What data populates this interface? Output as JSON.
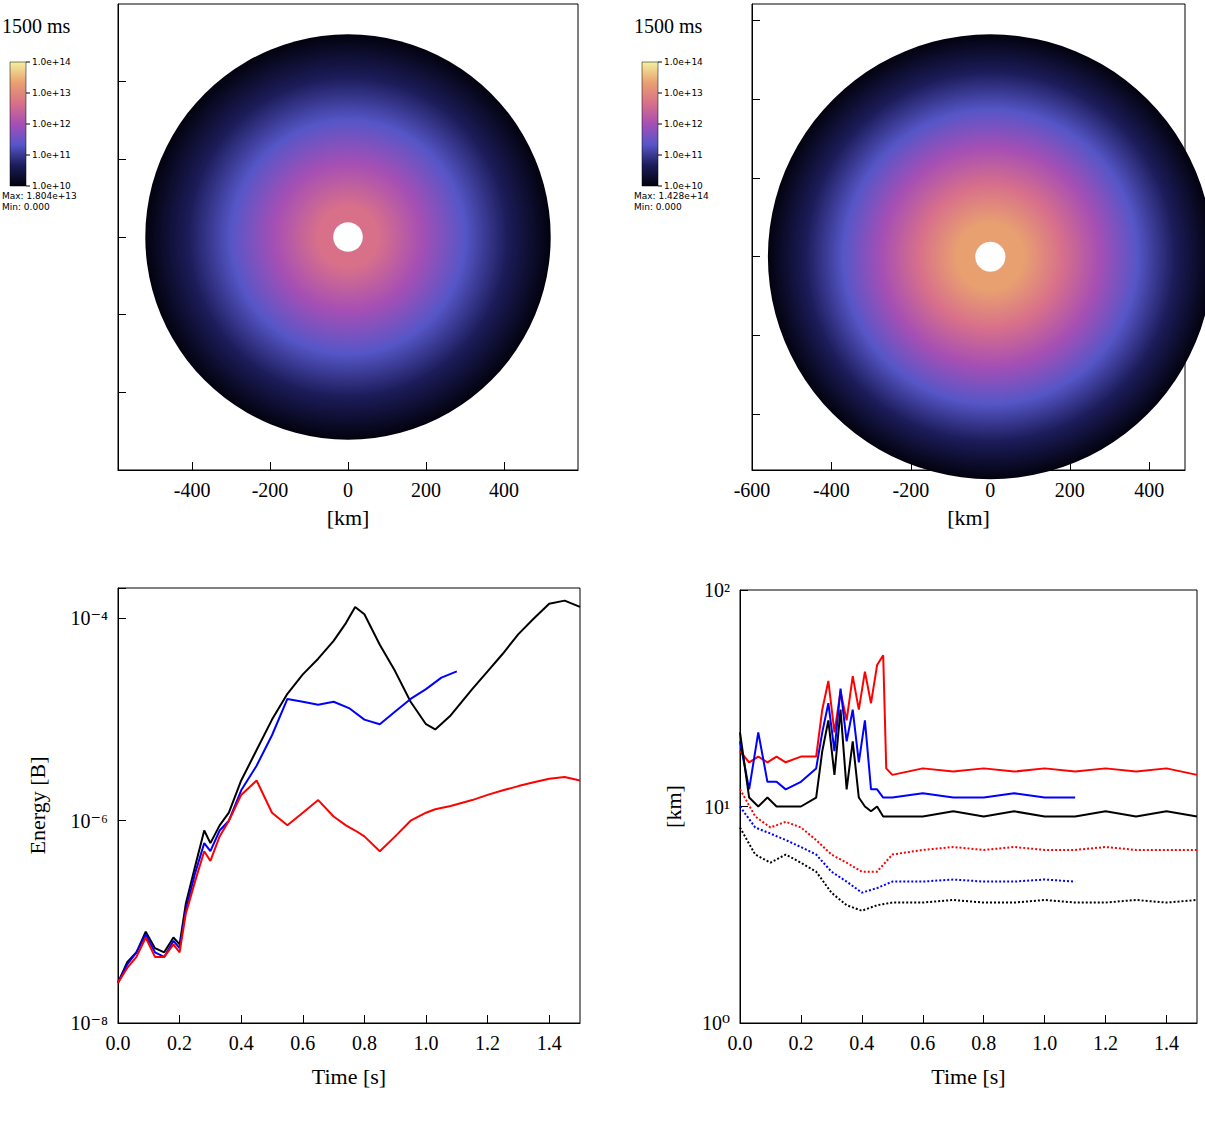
{
  "chart_data": [
    {
      "type": "image",
      "title": "1500 ms",
      "xlabel": "[km]",
      "xlim": [
        -590,
        590
      ],
      "xticks": [
        -400,
        -200,
        0,
        200,
        400
      ],
      "ylim": [
        -600,
        600
      ],
      "yticks": [
        -400,
        -200,
        0,
        200,
        400
      ],
      "tick_labels": "x",
      "colorbar": {
        "range": [
          10000000000.0,
          100000000000000.0
        ],
        "log": true,
        "ticks": [
          {
            "value": 100000000000000.0,
            "label": "1.0e+14"
          },
          {
            "value": 10000000000000.0,
            "label": "1.0e+13"
          },
          {
            "value": 1000000000000.0,
            "label": "1.0e+12"
          },
          {
            "value": 100000000000.0,
            "label": "1.0e+11"
          },
          {
            "value": 10000000000.0,
            "label": "1.0e+10"
          }
        ],
        "colors": [
          "#02020e",
          "#1c1c5a",
          "#5656c8",
          "#a64fb4",
          "#d8708a",
          "#e8a070",
          "#f4f0a0"
        ],
        "max_label": "Max: 1.804e+13",
        "min_label": "Min: 0.000"
      }
    },
    {
      "type": "image",
      "title": "1500 ms",
      "xlabel": "[km]",
      "xlim": [
        -600,
        490
      ],
      "xticks": [
        -600,
        -400,
        -200,
        0,
        200,
        400
      ],
      "ylim": [
        -540,
        640
      ],
      "yticks": [
        -400,
        -200,
        0,
        200,
        400,
        600
      ],
      "tick_labels": "x",
      "colorbar": {
        "range": [
          10000000000.0,
          100000000000000.0
        ],
        "log": true,
        "ticks": [
          {
            "value": 100000000000000.0,
            "label": "1.0e+14"
          },
          {
            "value": 10000000000000.0,
            "label": "1.0e+13"
          },
          {
            "value": 1000000000000.0,
            "label": "1.0e+12"
          },
          {
            "value": 100000000000.0,
            "label": "1.0e+11"
          },
          {
            "value": 10000000000.0,
            "label": "1.0e+10"
          }
        ],
        "colors": [
          "#02020e",
          "#1c1c5a",
          "#5656c8",
          "#a64fb4",
          "#d8708a",
          "#e8a070",
          "#f4f0a0"
        ],
        "max_label": "Max: 1.428e+14",
        "min_label": "Min: 0.000"
      }
    },
    {
      "type": "line",
      "xlabel": "Time [s]",
      "ylabel": "Energy [B]",
      "log": "y",
      "xlim": [
        0,
        1.5
      ],
      "xticks": [
        {
          "value": 0,
          "label": "0.0"
        },
        0.2,
        0.4,
        0.6,
        0.8,
        {
          "value": 1,
          "label": "1.0"
        },
        1.2,
        1.4
      ],
      "ylim": [
        1e-08,
        0.0002
      ],
      "yticks": [
        {
          "value": 1e-08,
          "label": "10⁻⁸"
        },
        {
          "value": 1e-06,
          "label": "10⁻⁶"
        },
        {
          "value": 0.0001,
          "label": "10⁻⁴"
        }
      ],
      "series": [
        {
          "color": "#000000",
          "line_style": "solid",
          "x": [
            0,
            0.03,
            0.06,
            0.09,
            0.12,
            0.15,
            0.18,
            0.2,
            0.22,
            0.25,
            0.28,
            0.3,
            0.33,
            0.36,
            0.4,
            0.45,
            0.5,
            0.55,
            0.6,
            0.65,
            0.7,
            0.74,
            0.77,
            0.8,
            0.85,
            0.9,
            0.95,
            1.0,
            1.03,
            1.08,
            1.15,
            1.2,
            1.25,
            1.3,
            1.35,
            1.4,
            1.45,
            1.5
          ],
          "values": [
            2.5e-08,
            4e-08,
            5e-08,
            8e-08,
            5.5e-08,
            5e-08,
            7e-08,
            6e-08,
            1.5e-07,
            3.5e-07,
            8e-07,
            6e-07,
            9e-07,
            1.2e-06,
            2.5e-06,
            5e-06,
            1e-05,
            1.8e-05,
            2.8e-05,
            4e-05,
            6e-05,
            9e-05,
            0.00013,
            0.00011,
            5.5e-05,
            3e-05,
            1.5e-05,
            9e-06,
            8e-06,
            1.1e-05,
            2e-05,
            3e-05,
            4.5e-05,
            7e-05,
            0.0001,
            0.00014,
            0.00015,
            0.00013
          ]
        },
        {
          "color": "#0000ff",
          "line_style": "solid",
          "x": [
            0,
            0.03,
            0.06,
            0.09,
            0.12,
            0.15,
            0.18,
            0.2,
            0.22,
            0.25,
            0.28,
            0.3,
            0.33,
            0.36,
            0.4,
            0.45,
            0.5,
            0.55,
            0.6,
            0.65,
            0.7,
            0.75,
            0.8,
            0.85,
            0.9,
            0.95,
            1.0,
            1.05,
            1.1
          ],
          "values": [
            2.5e-08,
            3.8e-08,
            5e-08,
            7.5e-08,
            5e-08,
            4.5e-08,
            6.5e-08,
            5.5e-08,
            1.3e-07,
            3e-07,
            6e-07,
            5e-07,
            8e-07,
            1e-06,
            2e-06,
            3.5e-06,
            7e-06,
            1.6e-05,
            1.5e-05,
            1.4e-05,
            1.5e-05,
            1.3e-05,
            1e-05,
            9e-06,
            1.2e-05,
            1.6e-05,
            2e-05,
            2.6e-05,
            3e-05
          ]
        },
        {
          "color": "#ff0000",
          "line_style": "solid",
          "x": [
            0,
            0.03,
            0.06,
            0.09,
            0.12,
            0.15,
            0.18,
            0.2,
            0.22,
            0.25,
            0.28,
            0.3,
            0.33,
            0.36,
            0.4,
            0.45,
            0.5,
            0.55,
            0.6,
            0.65,
            0.7,
            0.74,
            0.77,
            0.8,
            0.85,
            0.9,
            0.95,
            1.0,
            1.03,
            1.08,
            1.15,
            1.2,
            1.25,
            1.3,
            1.35,
            1.4,
            1.45,
            1.5
          ],
          "values": [
            2.5e-08,
            3.5e-08,
            4.5e-08,
            7e-08,
            4.5e-08,
            4.5e-08,
            6e-08,
            5e-08,
            1.2e-07,
            2.5e-07,
            5e-07,
            4e-07,
            7e-07,
            1e-06,
            1.8e-06,
            2.5e-06,
            1.2e-06,
            9e-07,
            1.2e-06,
            1.6e-06,
            1.1e-06,
            9e-07,
            8e-07,
            7e-07,
            5e-07,
            7e-07,
            1e-06,
            1.2e-06,
            1.3e-06,
            1.4e-06,
            1.6e-06,
            1.8e-06,
            2e-06,
            2.2e-06,
            2.4e-06,
            2.6e-06,
            2.7e-06,
            2.5e-06
          ]
        }
      ]
    },
    {
      "type": "line",
      "xlabel": "Time [s]",
      "ylabel": "[km]",
      "log": "y",
      "xlim": [
        0,
        1.5
      ],
      "xticks": [
        {
          "value": 0,
          "label": "0.0"
        },
        0.2,
        0.4,
        0.6,
        0.8,
        {
          "value": 1,
          "label": "1.0"
        },
        1.2,
        1.4
      ],
      "ylim": [
        1,
        100
      ],
      "yticks": [
        {
          "value": 1,
          "label": "10⁰"
        },
        {
          "value": 10,
          "label": "10¹"
        },
        {
          "value": 100,
          "label": "10²"
        }
      ],
      "series": [
        {
          "color": "#ff0000",
          "line_style": "solid",
          "x": [
            0,
            0.03,
            0.06,
            0.09,
            0.12,
            0.15,
            0.2,
            0.25,
            0.27,
            0.29,
            0.31,
            0.33,
            0.35,
            0.37,
            0.39,
            0.41,
            0.43,
            0.45,
            0.47,
            0.48,
            0.5,
            0.6,
            0.7,
            0.8,
            0.9,
            1.0,
            1.1,
            1.2,
            1.3,
            1.4,
            1.5
          ],
          "values": [
            18,
            16,
            17,
            16,
            17,
            16,
            17,
            17,
            28,
            38,
            22,
            34,
            25,
            40,
            28,
            42,
            30,
            45,
            50,
            15,
            14,
            15,
            14.5,
            15,
            14.5,
            15,
            14.5,
            15,
            14.5,
            15,
            14
          ]
        },
        {
          "color": "#0000ff",
          "line_style": "solid",
          "x": [
            0,
            0.03,
            0.06,
            0.09,
            0.12,
            0.15,
            0.2,
            0.25,
            0.27,
            0.29,
            0.31,
            0.33,
            0.35,
            0.37,
            0.39,
            0.41,
            0.43,
            0.45,
            0.47,
            0.48,
            0.5,
            0.6,
            0.7,
            0.8,
            0.9,
            1.0,
            1.1
          ],
          "values": [
            20,
            12,
            22,
            13,
            13,
            12,
            13,
            15,
            22,
            30,
            18,
            35,
            20,
            28,
            16,
            25,
            12,
            12,
            11,
            11,
            11,
            11.5,
            11,
            11,
            11.5,
            11,
            11
          ]
        },
        {
          "color": "#000000",
          "line_style": "solid",
          "x": [
            0,
            0.03,
            0.06,
            0.09,
            0.12,
            0.15,
            0.2,
            0.25,
            0.27,
            0.29,
            0.31,
            0.33,
            0.35,
            0.37,
            0.39,
            0.41,
            0.43,
            0.45,
            0.47,
            0.48,
            0.5,
            0.6,
            0.7,
            0.8,
            0.9,
            1.0,
            1.1,
            1.2,
            1.3,
            1.4,
            1.5
          ],
          "values": [
            22,
            11,
            10,
            11,
            10,
            10,
            10,
            11,
            18,
            25,
            14,
            28,
            12,
            20,
            11,
            10,
            9.5,
            10,
            9,
            9,
            9,
            9,
            9.5,
            9,
            9.5,
            9,
            9,
            9.5,
            9,
            9.5,
            9
          ]
        },
        {
          "color": "#ff0000",
          "line_style": "dotted",
          "x": [
            0,
            0.05,
            0.1,
            0.15,
            0.2,
            0.25,
            0.3,
            0.35,
            0.4,
            0.45,
            0.5,
            0.6,
            0.7,
            0.8,
            0.9,
            1.0,
            1.1,
            1.2,
            1.3,
            1.4,
            1.5
          ],
          "values": [
            12,
            9,
            8,
            8.5,
            8,
            7,
            6,
            5.5,
            5,
            5,
            6,
            6.3,
            6.5,
            6.3,
            6.5,
            6.3,
            6.3,
            6.5,
            6.3,
            6.3,
            6.3
          ]
        },
        {
          "color": "#0000ff",
          "line_style": "dotted",
          "x": [
            0,
            0.05,
            0.1,
            0.15,
            0.2,
            0.25,
            0.3,
            0.35,
            0.4,
            0.45,
            0.5,
            0.6,
            0.7,
            0.8,
            0.9,
            1.0,
            1.1
          ],
          "values": [
            10,
            8,
            7.5,
            7,
            6.5,
            6,
            5,
            4.5,
            4,
            4.2,
            4.5,
            4.5,
            4.6,
            4.5,
            4.5,
            4.6,
            4.5
          ]
        },
        {
          "color": "#000000",
          "line_style": "dotted",
          "x": [
            0,
            0.05,
            0.1,
            0.15,
            0.2,
            0.25,
            0.3,
            0.35,
            0.4,
            0.45,
            0.5,
            0.6,
            0.7,
            0.8,
            0.9,
            1.0,
            1.1,
            1.2,
            1.3,
            1.4,
            1.5
          ],
          "values": [
            8,
            6,
            5.5,
            6,
            5.5,
            5,
            4,
            3.5,
            3.3,
            3.5,
            3.6,
            3.6,
            3.7,
            3.6,
            3.6,
            3.7,
            3.6,
            3.6,
            3.7,
            3.6,
            3.7
          ]
        }
      ]
    }
  ]
}
